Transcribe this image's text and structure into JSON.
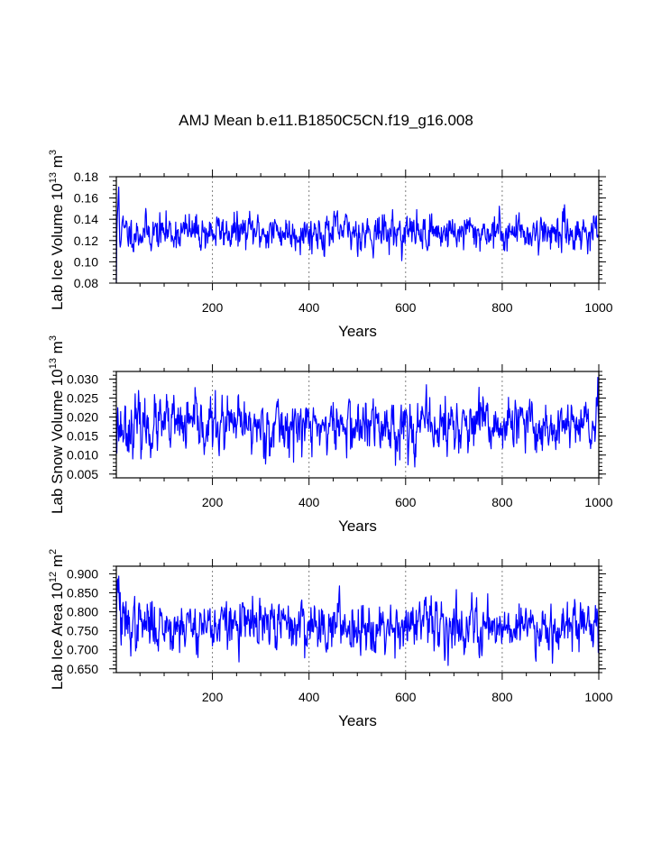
{
  "figure_title": "AMJ Mean b.e11.B1850C5CN.f19_g16.008",
  "series_color": "#0000ff",
  "chart_data": [
    {
      "type": "line",
      "ylabel_main": "Lab Ice Volume 10",
      "ylabel_exp1": "13",
      "ylabel_mid": " m",
      "ylabel_exp2": "3",
      "xlabel": "Years",
      "xlim": [
        1,
        1000
      ],
      "ylim": [
        0.08,
        0.18
      ],
      "yticks": [
        "0.08",
        "0.10",
        "0.12",
        "0.14",
        "0.16",
        "0.18"
      ],
      "xticks": [
        "200",
        "400",
        "600",
        "800",
        "1000"
      ],
      "dashed_x": [
        200,
        400,
        600,
        800
      ],
      "baseline": 0.128,
      "noise": 0.0085,
      "start": [
        0.08,
        0.125,
        0.14,
        0.15,
        0.16,
        0.17,
        0.145
      ],
      "seed": 11
    },
    {
      "type": "line",
      "ylabel_main": "Lab Snow Volume 10",
      "ylabel_exp1": "13",
      "ylabel_mid": " m",
      "ylabel_exp2": "3",
      "xlabel": "Years",
      "xlim": [
        1,
        1000
      ],
      "ylim": [
        0.004,
        0.032
      ],
      "yticks": [
        "0.005",
        "0.010",
        "0.015",
        "0.020",
        "0.025",
        "0.030"
      ],
      "xticks": [
        "200",
        "400",
        "600",
        "800",
        "1000"
      ],
      "dashed_x": [
        200,
        400,
        600,
        800
      ],
      "baseline": 0.0175,
      "noise": 0.0036,
      "start": [
        0.016,
        0.012,
        0.02,
        0.023,
        0.017
      ],
      "seed": 23
    },
    {
      "type": "line",
      "ylabel_main": "Lab Ice Area 10",
      "ylabel_exp1": "12",
      "ylabel_mid": " m",
      "ylabel_exp2": "2",
      "xlabel": "Years",
      "xlim": [
        1,
        1000
      ],
      "ylim": [
        0.64,
        0.92
      ],
      "yticks": [
        "0.650",
        "0.700",
        "0.750",
        "0.800",
        "0.850",
        "0.900"
      ],
      "xticks": [
        "200",
        "400",
        "600",
        "800",
        "1000"
      ],
      "dashed_x": [
        200,
        400,
        600,
        800
      ],
      "baseline": 0.765,
      "noise": 0.033,
      "start": [
        0.79,
        0.83,
        0.88,
        0.9,
        0.86,
        0.89,
        0.83,
        0.8,
        0.84
      ],
      "seed": 37
    }
  ]
}
